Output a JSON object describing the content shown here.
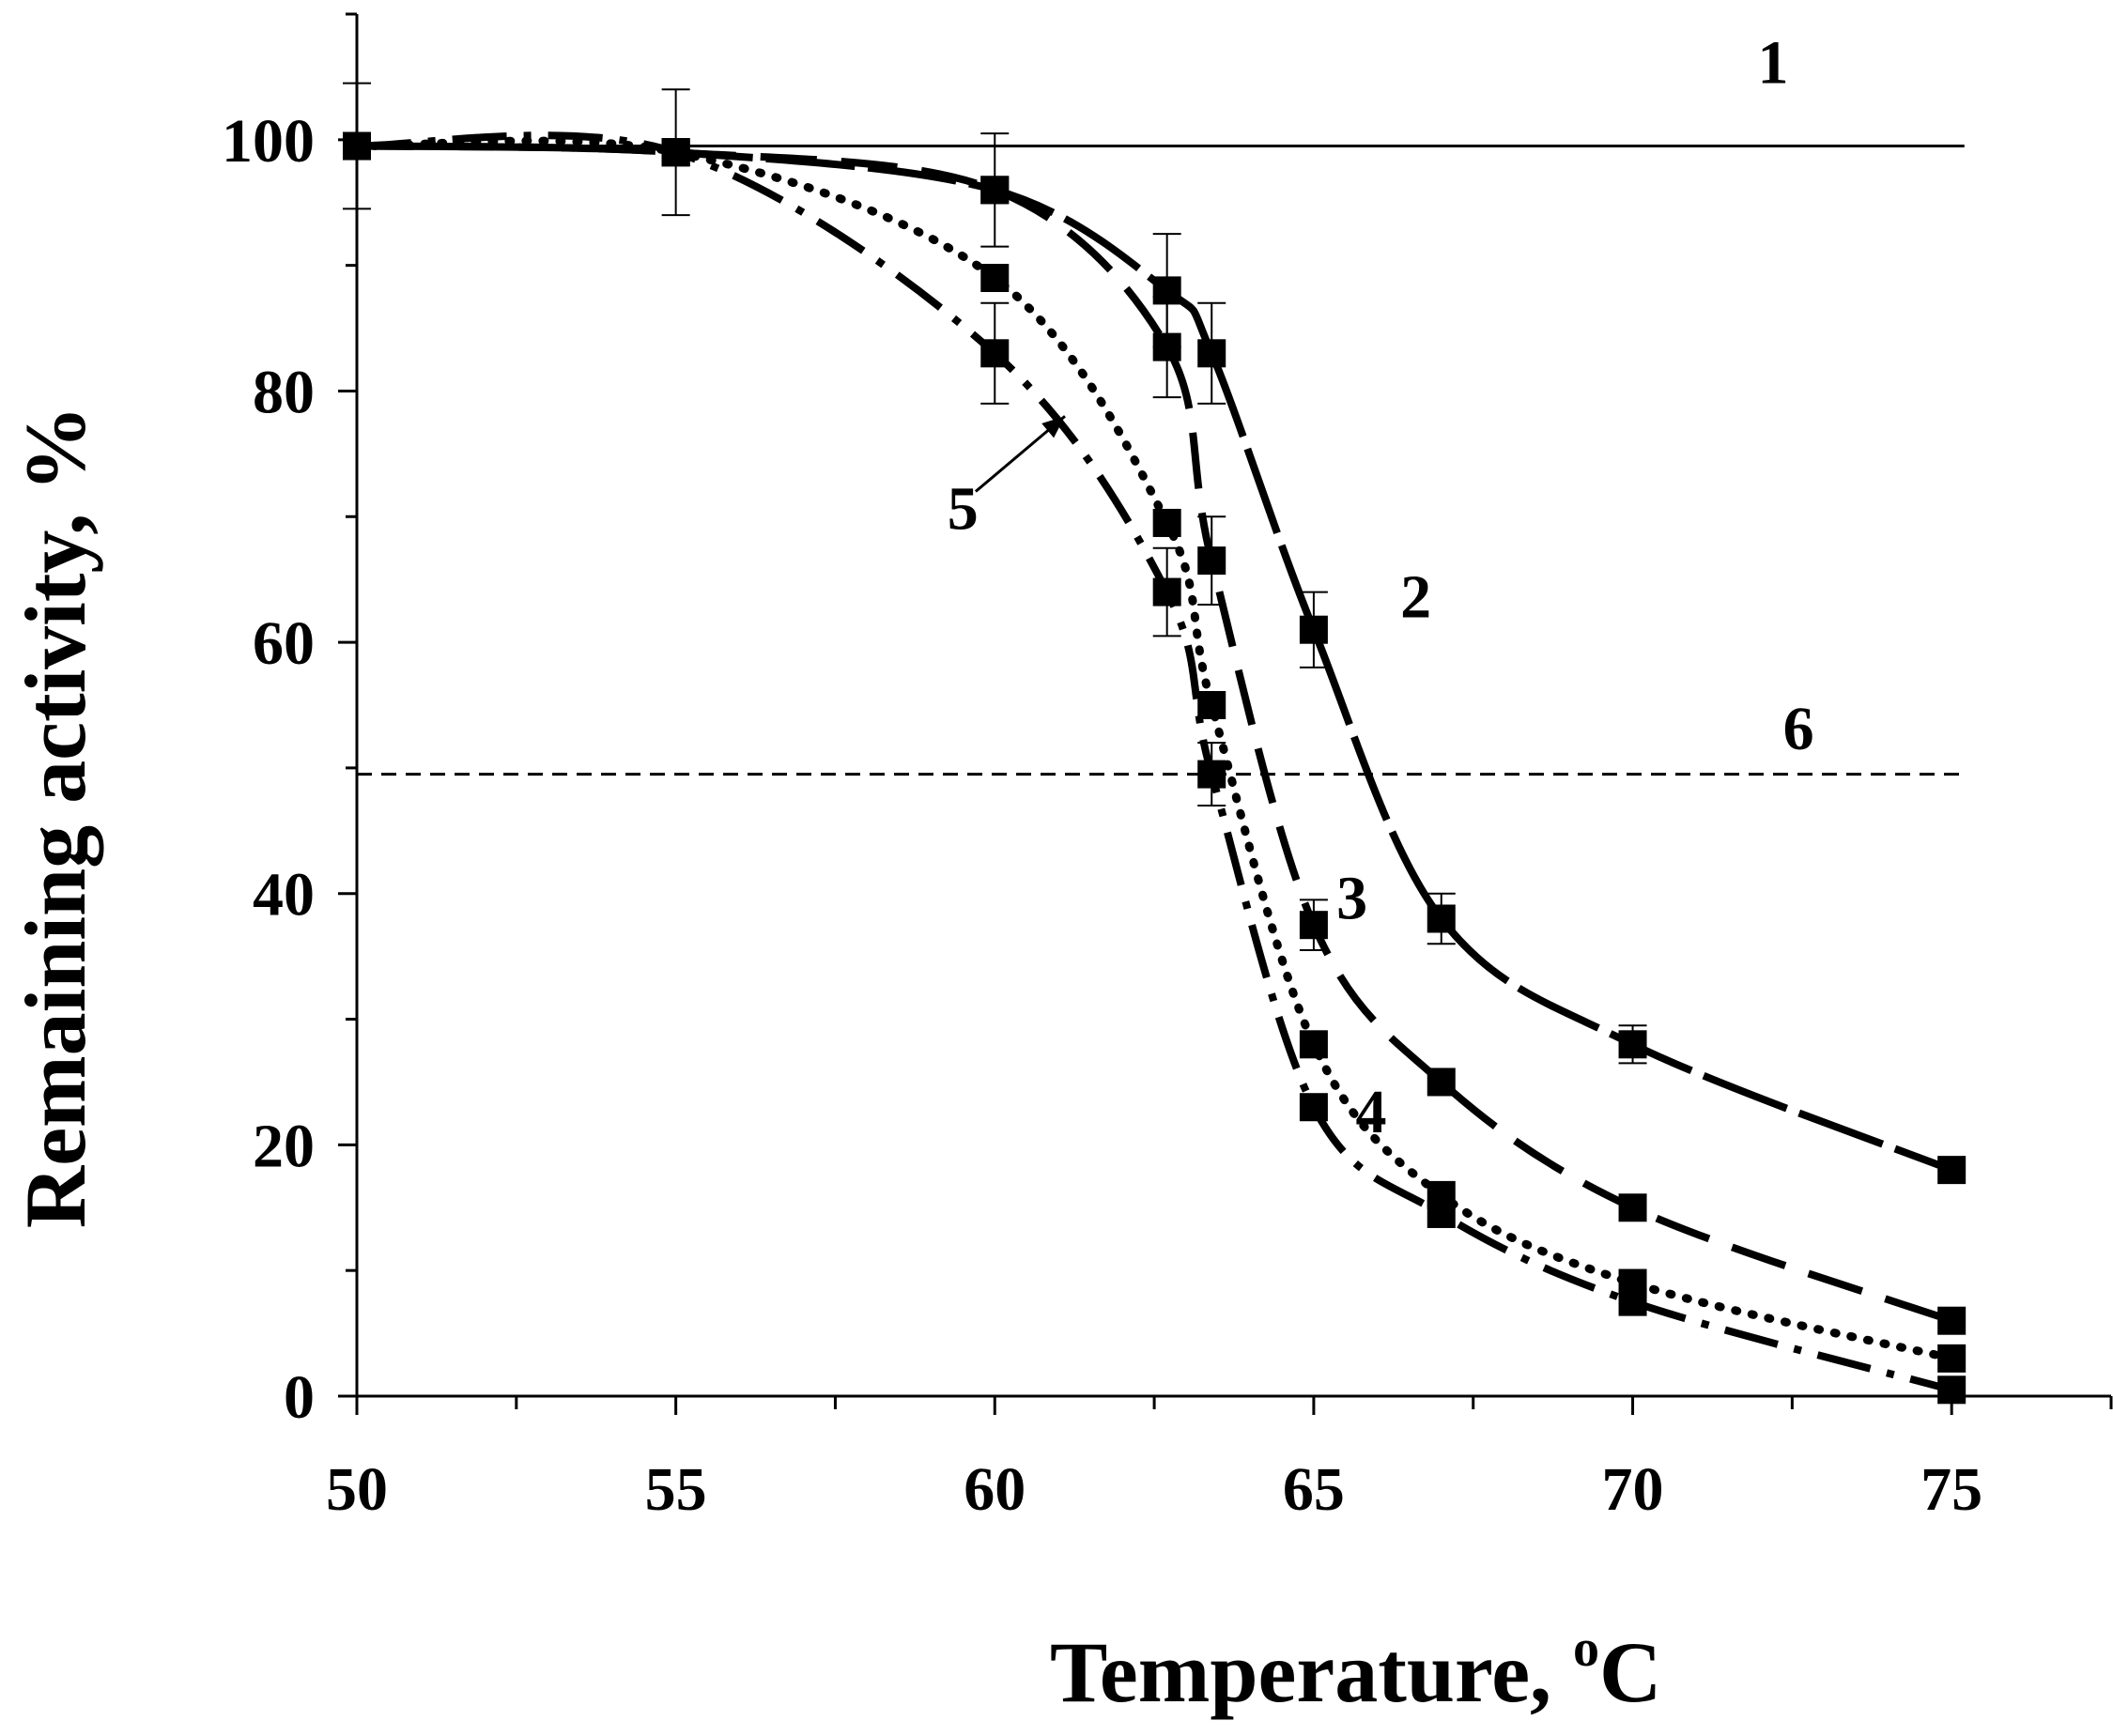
{
  "chart_data": {
    "type": "line",
    "title": "",
    "xlabel": "Temperature, ",
    "xlabel_superscript": "o",
    "xlabel_unit": "C",
    "ylabel": "Remaining activity, %",
    "xlim": [
      50,
      77.5
    ],
    "ylim": [
      0,
      110
    ],
    "x_ticks": [
      50,
      55,
      60,
      65,
      70,
      75
    ],
    "y_ticks": [
      0,
      20,
      40,
      60,
      80,
      100
    ],
    "x_tick_labels": [
      "50",
      "55",
      "60",
      "65",
      "70",
      "75"
    ],
    "y_tick_labels": [
      "0",
      "20",
      "40",
      "60",
      "80",
      "100"
    ],
    "grid": false,
    "series": [
      {
        "name": "1",
        "label": "1",
        "style": "solid",
        "marker": "none",
        "x": [
          50,
          75.2
        ],
        "y": [
          99.5,
          99.5
        ]
      },
      {
        "name": "2",
        "label": "2",
        "style": "longdash",
        "marker": "square",
        "x": [
          50,
          55,
          60,
          62.7,
          63.4,
          65,
          67,
          70,
          75
        ],
        "y": [
          99.5,
          99,
          96,
          88,
          83,
          61,
          38,
          28,
          18
        ]
      },
      {
        "name": "3",
        "label": "3",
        "style": "dash",
        "marker": "square",
        "x": [
          50,
          55,
          60,
          62.7,
          63.4,
          65,
          67,
          70,
          75
        ],
        "y": [
          99.5,
          99,
          96,
          83.5,
          66.5,
          37.5,
          25,
          15,
          6
        ]
      },
      {
        "name": "4",
        "label": "4",
        "style": "dotted",
        "marker": "square",
        "x": [
          50,
          55,
          60,
          62.7,
          63.4,
          65,
          67,
          70,
          75
        ],
        "y": [
          99.5,
          99,
          89,
          69.5,
          55,
          28,
          16,
          9,
          3
        ]
      },
      {
        "name": "5",
        "label": "5",
        "style": "dashdot",
        "marker": "square",
        "x": [
          50,
          55,
          60,
          62.7,
          63.4,
          65,
          67,
          70,
          75
        ],
        "y": [
          99.5,
          99,
          83,
          64,
          49.5,
          23,
          14.5,
          7.5,
          0.5
        ]
      },
      {
        "name": "6",
        "label": "6",
        "style": "shortdash",
        "marker": "none",
        "x": [
          50,
          75.2
        ],
        "y": [
          49.5,
          49.5
        ]
      }
    ],
    "error_bars": [
      {
        "x": 50,
        "y": 99.5,
        "err": 5
      },
      {
        "x": 55,
        "y": 99,
        "err": 5
      },
      {
        "x": 60,
        "y": 96,
        "err": 4.5
      },
      {
        "x": 60,
        "y": 83,
        "err": 4
      },
      {
        "x": 62.7,
        "y": 88,
        "err": 4.5
      },
      {
        "x": 62.7,
        "y": 83.5,
        "err": 4
      },
      {
        "x": 63.4,
        "y": 83,
        "err": 4
      },
      {
        "x": 62.7,
        "y": 64,
        "err": 3.5
      },
      {
        "x": 63.4,
        "y": 66.5,
        "err": 3.5
      },
      {
        "x": 63.4,
        "y": 49.5,
        "err": 2.5
      },
      {
        "x": 65,
        "y": 61,
        "err": 3
      },
      {
        "x": 65,
        "y": 37.5,
        "err": 2
      },
      {
        "x": 67,
        "y": 38,
        "err": 2
      },
      {
        "x": 70,
        "y": 28,
        "err": 1.5
      }
    ],
    "annotations": [
      {
        "text": "1",
        "x": 72.2,
        "y": 104.5
      },
      {
        "text": "2",
        "x": 66.6,
        "y": 62
      },
      {
        "text": "3",
        "x": 65.6,
        "y": 38
      },
      {
        "text": "4",
        "x": 65.9,
        "y": 21
      },
      {
        "text": "5",
        "x": 59.5,
        "y": 69
      },
      {
        "text": "6",
        "x": 72.6,
        "y": 51.5
      }
    ],
    "arrow": {
      "label": "5",
      "from_x": 59.7,
      "from_y": 72,
      "to_x": 61.1,
      "to_y": 78
    }
  }
}
